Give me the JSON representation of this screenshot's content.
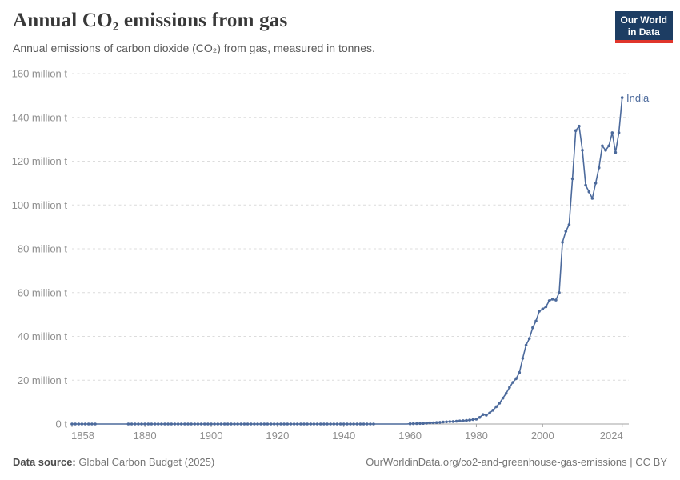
{
  "header": {
    "title": "Annual CO₂ emissions from gas",
    "subtitle": "Annual emissions of carbon dioxide (CO₂) from gas, measured in tonnes.",
    "logo": {
      "line1": "Our World",
      "line2": "in Data",
      "bg_color": "#1D3D63",
      "accent_color": "#E0352B"
    }
  },
  "chart_data": {
    "type": "line",
    "title": "Annual CO₂ emissions from gas",
    "xlabel": "",
    "ylabel": "",
    "unit": "million t",
    "xlim": [
      1858,
      2026
    ],
    "ylim": [
      0,
      160
    ],
    "grid": "dashed-horizontal",
    "legend_position": "end-of-line-label",
    "axis_color": "#a3a3a3",
    "grid_color": "#dcdcdc",
    "label_color": "#8e8e8e",
    "yticks": [
      {
        "value": 0,
        "label": "0 t"
      },
      {
        "value": 20,
        "label": "20 million t"
      },
      {
        "value": 40,
        "label": "40 million t"
      },
      {
        "value": 60,
        "label": "60 million t"
      },
      {
        "value": 80,
        "label": "80 million t"
      },
      {
        "value": 100,
        "label": "100 million t"
      },
      {
        "value": 120,
        "label": "120 million t"
      },
      {
        "value": 140,
        "label": "140 million t"
      },
      {
        "value": 160,
        "label": "160 million t"
      }
    ],
    "xticks": [
      1858,
      1880,
      1900,
      1920,
      1940,
      1960,
      1980,
      2000,
      2024
    ],
    "series": [
      {
        "name": "India",
        "color": "#4C6A9C",
        "flat_zero": {
          "from": 1858,
          "to": 1959,
          "value": 0
        },
        "marker_gaps": [
          [
            1866,
            1874
          ],
          [
            1950,
            1959
          ]
        ],
        "points": [
          [
            1960,
            0.1
          ],
          [
            1961,
            0.15
          ],
          [
            1962,
            0.2
          ],
          [
            1963,
            0.25
          ],
          [
            1964,
            0.3
          ],
          [
            1965,
            0.4
          ],
          [
            1966,
            0.5
          ],
          [
            1967,
            0.55
          ],
          [
            1968,
            0.65
          ],
          [
            1969,
            0.75
          ],
          [
            1970,
            0.9
          ],
          [
            1971,
            1.0
          ],
          [
            1972,
            1.1
          ],
          [
            1973,
            1.15
          ],
          [
            1974,
            1.25
          ],
          [
            1975,
            1.4
          ],
          [
            1976,
            1.5
          ],
          [
            1977,
            1.6
          ],
          [
            1978,
            1.8
          ],
          [
            1979,
            2.0
          ],
          [
            1980,
            2.2
          ],
          [
            1981,
            3.0
          ],
          [
            1982,
            4.3
          ],
          [
            1983,
            4.0
          ],
          [
            1984,
            5.0
          ],
          [
            1985,
            6.3
          ],
          [
            1986,
            7.9
          ],
          [
            1987,
            9.5
          ],
          [
            1988,
            11.8
          ],
          [
            1989,
            14.0
          ],
          [
            1990,
            16.7
          ],
          [
            1991,
            19.0
          ],
          [
            1992,
            20.7
          ],
          [
            1993,
            23.5
          ],
          [
            1994,
            30.0
          ],
          [
            1995,
            36.0
          ],
          [
            1996,
            39.0
          ],
          [
            1997,
            44.0
          ],
          [
            1998,
            47.0
          ],
          [
            1999,
            51.5
          ],
          [
            2000,
            52.5
          ],
          [
            2001,
            53.5
          ],
          [
            2002,
            56.3
          ],
          [
            2003,
            57.0
          ],
          [
            2004,
            56.6
          ],
          [
            2005,
            60.0
          ],
          [
            2006,
            83.0
          ],
          [
            2007,
            88.0
          ],
          [
            2008,
            91.0
          ],
          [
            2009,
            112.0
          ],
          [
            2010,
            134.0
          ],
          [
            2011,
            136.0
          ],
          [
            2012,
            125.0
          ],
          [
            2013,
            109.0
          ],
          [
            2014,
            106.0
          ],
          [
            2015,
            103.0
          ],
          [
            2016,
            110.0
          ],
          [
            2017,
            117.0
          ],
          [
            2018,
            127.0
          ],
          [
            2019,
            125.0
          ],
          [
            2020,
            127.0
          ],
          [
            2021,
            133.0
          ],
          [
            2022,
            124.0
          ],
          [
            2023,
            133.0
          ],
          [
            2024,
            149.0
          ]
        ]
      }
    ]
  },
  "footer": {
    "source_label": "Data source:",
    "source_value": "Global Carbon Budget (2025)",
    "attribution": "OurWorldinData.org/co2-and-greenhouse-gas-emissions | CC BY"
  }
}
